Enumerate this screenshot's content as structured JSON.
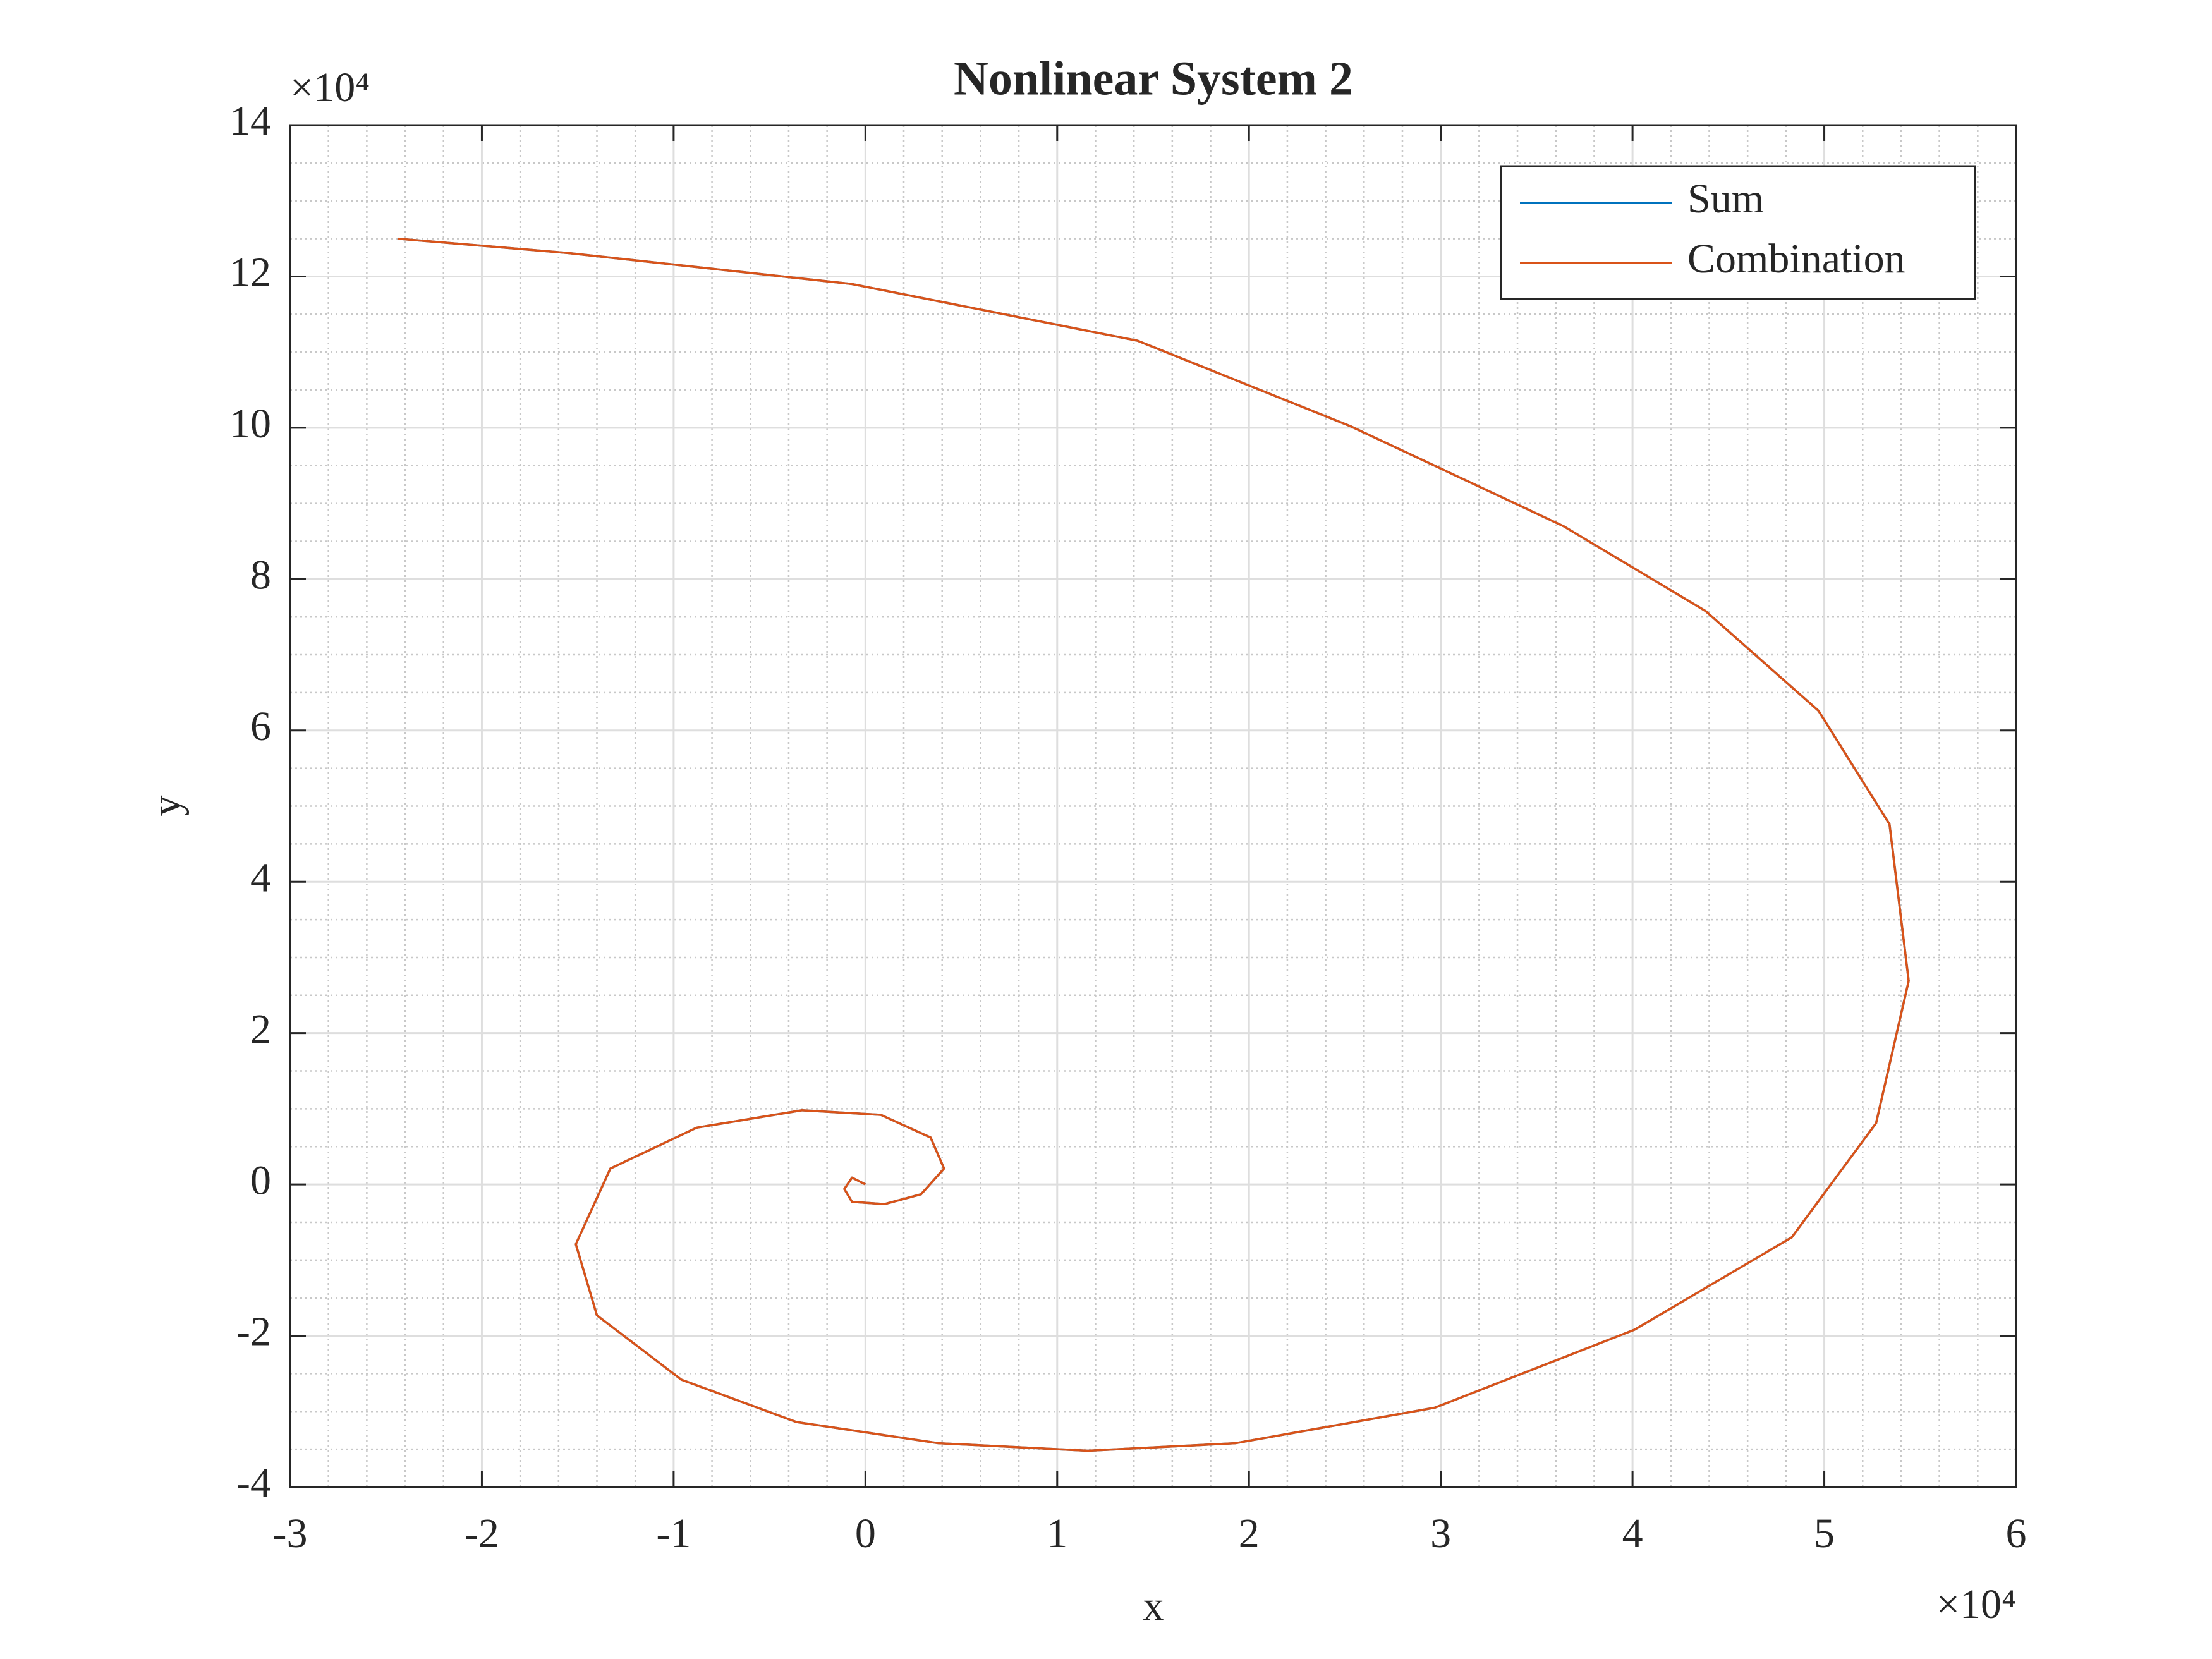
{
  "chart_data": {
    "type": "line",
    "title": "Nonlinear System 2",
    "x_label": "x",
    "y_label": "y",
    "x_multiplier": "×10⁴",
    "y_multiplier": "×10⁴",
    "xlim": [
      -3,
      6
    ],
    "xticks": [
      -3,
      -2,
      -1,
      0,
      1,
      2,
      3,
      4,
      5,
      6
    ],
    "ylim": [
      -4,
      14
    ],
    "yticks": [
      -4,
      -2,
      0,
      2,
      4,
      6,
      8,
      10,
      12,
      14
    ],
    "grid": true,
    "minor_grid": true,
    "legend": "northeast",
    "series": [
      {
        "name": "Sum",
        "color": "#0072bd",
        "x": [
          0,
          -0.07,
          -0.11,
          -0.07,
          0.1,
          0.29,
          0.41,
          0.34,
          0.08,
          -0.33,
          -0.88,
          -1.33,
          -1.51,
          -1.4,
          -0.96,
          -0.36,
          0.38,
          1.16,
          1.93,
          2.97,
          4.01,
          4.83,
          5.27,
          5.44,
          5.34,
          4.97,
          4.38,
          3.64,
          2.53,
          1.42,
          -0.07,
          -1.55,
          -2.44
        ],
        "values": [
          0,
          0.09,
          -0.06,
          -0.23,
          -0.26,
          -0.13,
          0.21,
          0.62,
          0.92,
          0.98,
          0.75,
          0.21,
          -0.79,
          -1.73,
          -2.58,
          -3.14,
          -3.42,
          -3.52,
          -3.42,
          -2.95,
          -1.92,
          -0.7,
          0.81,
          2.69,
          4.76,
          6.26,
          7.58,
          8.7,
          10.02,
          11.15,
          11.9,
          12.31,
          12.5
        ]
      },
      {
        "name": "Combination",
        "color": "#d95319",
        "x": [
          0,
          -0.07,
          -0.11,
          -0.07,
          0.1,
          0.29,
          0.41,
          0.34,
          0.08,
          -0.33,
          -0.88,
          -1.33,
          -1.51,
          -1.4,
          -0.96,
          -0.36,
          0.38,
          1.16,
          1.93,
          2.97,
          4.01,
          4.83,
          5.27,
          5.44,
          5.34,
          4.97,
          4.38,
          3.64,
          2.53,
          1.42,
          -0.07,
          -1.55,
          -2.44
        ],
        "values": [
          0,
          0.09,
          -0.06,
          -0.23,
          -0.26,
          -0.13,
          0.21,
          0.62,
          0.92,
          0.98,
          0.75,
          0.21,
          -0.79,
          -1.73,
          -2.58,
          -3.14,
          -3.42,
          -3.52,
          -3.42,
          -2.95,
          -1.92,
          -0.7,
          0.81,
          2.69,
          4.76,
          6.26,
          7.58,
          8.7,
          10.02,
          11.15,
          11.9,
          12.31,
          12.5
        ]
      }
    ]
  }
}
